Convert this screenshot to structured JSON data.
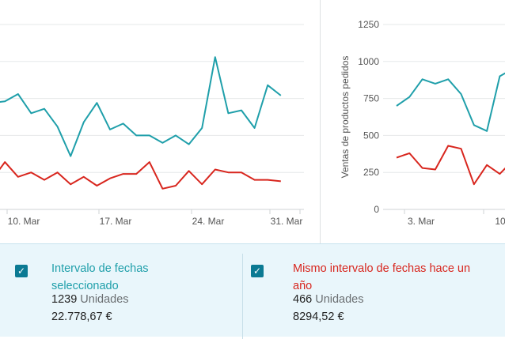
{
  "chart_data": [
    {
      "type": "line",
      "xlabel": "",
      "ylabel": "",
      "ylim": [
        0,
        1250
      ],
      "x_tick_labels": [
        "10. Mar",
        "17. Mar",
        "24. Mar",
        "31. Mar"
      ],
      "grid": true,
      "series": [
        {
          "name": "Intervalo de fechas seleccionado",
          "color": "#1f9faa",
          "values": [
            440,
            720,
            730,
            780,
            650,
            680,
            560,
            360,
            590,
            720,
            540,
            580,
            500,
            500,
            450,
            500,
            440,
            550,
            1030,
            650,
            670,
            550,
            840,
            770
          ]
        },
        {
          "name": "Mismo intervalo de fechas hace un año",
          "color": "#d8261e",
          "values": [
            280,
            200,
            320,
            220,
            250,
            200,
            250,
            170,
            220,
            160,
            210,
            240,
            240,
            320,
            140,
            160,
            260,
            170,
            270,
            250,
            250,
            200,
            200,
            190
          ]
        }
      ]
    },
    {
      "type": "line",
      "xlabel": "",
      "ylabel": "Ventas de productos pedidos",
      "ylim": [
        0,
        1250
      ],
      "y_tick_labels": [
        "0",
        "250",
        "500",
        "750",
        "1000",
        "1250"
      ],
      "x_tick_labels": [
        "3. Mar",
        "10"
      ],
      "grid": true,
      "series": [
        {
          "name": "Intervalo de fechas seleccionado",
          "color": "#1f9faa",
          "values": [
            700,
            760,
            880,
            850,
            880,
            780,
            570,
            530,
            900,
            950
          ]
        },
        {
          "name": "Mismo intervalo de fechas hace un año",
          "color": "#d8261e",
          "values": [
            350,
            380,
            280,
            270,
            430,
            410,
            170,
            300,
            240,
            330
          ]
        }
      ]
    }
  ],
  "legend": {
    "current": {
      "title": "Intervalo de fechas seleccionado",
      "units_value": "1239",
      "units_label": "Unidades",
      "sales": "22.778,67 €",
      "color": "#1f9faa",
      "checked": true
    },
    "previous": {
      "title": "Mismo intervalo de fechas hace un año",
      "units_value": "466",
      "units_label": "Unidades",
      "sales": "8294,52 €",
      "color": "#d8261e",
      "checked": true
    }
  }
}
